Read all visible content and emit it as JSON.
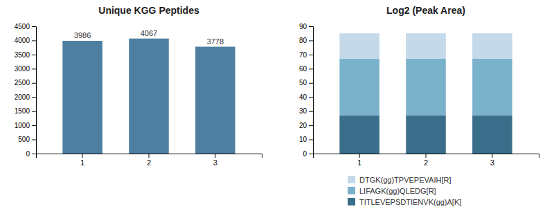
{
  "chart_data": [
    {
      "type": "bar",
      "title": "Unique KGG Peptides",
      "categories": [
        "1",
        "2",
        "3"
      ],
      "values": [
        3986,
        4067,
        3778
      ],
      "color": "#4e7fa0",
      "ylim": [
        0,
        4500
      ],
      "yticks": [
        0,
        500,
        1000,
        1500,
        2000,
        2500,
        3000,
        3500,
        4000,
        4500
      ],
      "data_labels": true,
      "grid": false
    },
    {
      "type": "bar",
      "title": "Log2 (Peak Area)",
      "stacked": true,
      "categories": [
        "1",
        "2",
        "3"
      ],
      "series": [
        {
          "name": "TITLEVEPSDTIENVK(gg)A[K]",
          "color": "#3a6e8a",
          "values": [
            27,
            27,
            27
          ]
        },
        {
          "name": "LIFAGK(gg)QLEDG[R]",
          "color": "#7ab2cb",
          "values": [
            40,
            40,
            40
          ]
        },
        {
          "name": "DTGK(gg)TPVEPEVAIH[R]",
          "color": "#c4d9ea",
          "values": [
            18,
            18,
            18
          ]
        }
      ],
      "ylim": [
        0,
        90
      ],
      "yticks": [
        0,
        10,
        20,
        30,
        40,
        50,
        60,
        70,
        80,
        90
      ],
      "legend": "bottom",
      "grid": false
    }
  ]
}
